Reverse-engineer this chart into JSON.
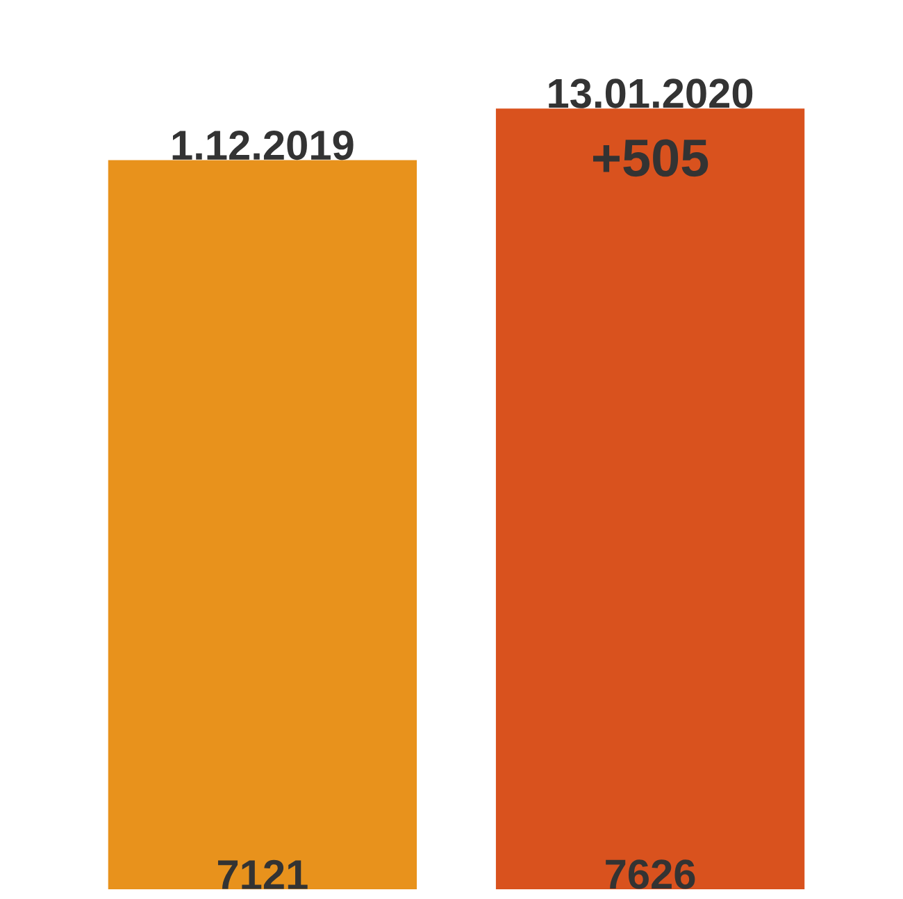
{
  "chart_data": {
    "type": "bar",
    "categories": [
      "1.12.2019",
      "13.01.2020"
    ],
    "values": [
      7121,
      7626
    ],
    "colors": [
      "#e8921c",
      "#d9521e"
    ],
    "data_labels": true,
    "annotations": [
      "+505"
    ]
  }
}
